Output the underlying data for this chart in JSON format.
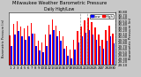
{
  "title": "Milwaukee Weather Barometric Pressure",
  "subtitle": "Daily High/Low",
  "x_labels": [
    "1",
    "2",
    "3",
    "4",
    "5",
    "6",
    "7",
    "8",
    "9",
    "10",
    "11",
    "12",
    "13",
    "14",
    "15",
    "16",
    "17",
    "18",
    "19",
    "20",
    "21",
    "22",
    "23",
    "24",
    "25",
    "26",
    "27",
    "28",
    "29",
    "30"
  ],
  "highs": [
    30.05,
    30.42,
    30.5,
    30.35,
    30.28,
    30.38,
    30.45,
    30.12,
    29.88,
    29.82,
    30.08,
    30.4,
    30.58,
    30.38,
    30.18,
    30.02,
    29.72,
    29.6,
    29.92,
    30.18,
    30.35,
    30.55,
    30.62,
    30.48,
    30.32,
    30.08,
    29.92,
    30.22,
    30.38,
    30.12
  ],
  "lows": [
    29.72,
    30.08,
    30.18,
    30.02,
    29.92,
    30.02,
    30.1,
    29.72,
    29.55,
    29.5,
    29.72,
    30.08,
    30.22,
    30.02,
    29.88,
    29.62,
    29.4,
    29.3,
    29.58,
    29.82,
    30.02,
    30.15,
    30.22,
    30.08,
    29.92,
    29.72,
    29.62,
    29.88,
    30.02,
    29.78
  ],
  "high_color": "#ff0000",
  "low_color": "#0000ff",
  "bg_color": "#c8c8c8",
  "plot_bg": "#ffffff",
  "ylim_min": 29.1,
  "ylim_max": 30.8,
  "ytick_step": 0.1,
  "bar_width": 0.38,
  "dashed_vlines_x": [
    19.5,
    21.5
  ],
  "legend_high_label": "High",
  "legend_low_label": "Low",
  "title_fontsize": 3.8,
  "tick_fontsize": 2.8,
  "legend_fontsize": 2.8,
  "ylabel_left": "Barometric Pressure (in)",
  "ytick_labels": [
    "29.10",
    "29.20",
    "29.30",
    "29.40",
    "29.50",
    "29.60",
    "29.70",
    "29.80",
    "29.90",
    "30.00",
    "30.10",
    "30.20",
    "30.30",
    "30.40",
    "30.50",
    "30.60",
    "30.70",
    "30.80"
  ]
}
